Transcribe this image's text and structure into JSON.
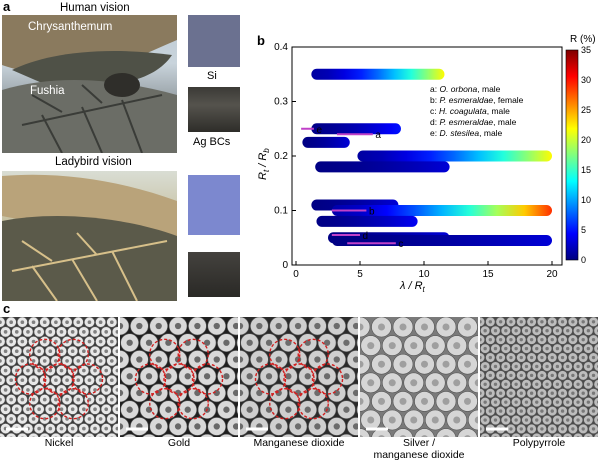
{
  "panel_a": {
    "label": "a",
    "human_title": "Human vision",
    "chrysanthemum": "Chrysanthemum",
    "fushia": "Fushia",
    "si": "Si",
    "ag": "Ag BCs",
    "ladybird_title": "Ladybird vision"
  },
  "panel_b": {
    "label": "b"
  },
  "panel_c": {
    "label": "c",
    "captions": [
      "Nickel",
      "Gold",
      "Manganese dioxide",
      "Silver /",
      "manganese dioxide",
      "Polypyrrole"
    ]
  },
  "chart_data": {
    "type": "bar",
    "xlabel_main": "λ / R",
    "xlabel_sub": "t",
    "ylabel_main": "R",
    "ylabel_t": "t",
    "ylabel_mid": " / R",
    "ylabel_b": "b",
    "xlim": [
      0,
      20
    ],
    "ylim": [
      0,
      0.4
    ],
    "xticks": [
      0,
      5,
      10,
      15,
      20
    ],
    "yticks": [
      0,
      0.1,
      0.2,
      0.3,
      0.4
    ],
    "colorbar": {
      "title": "R (%)",
      "min": 0,
      "max": 35,
      "ticks": [
        0,
        5,
        10,
        15,
        20,
        25,
        30,
        35
      ]
    },
    "legend": [
      {
        "letter": "a: ",
        "species": "O. orbona",
        "sex": ", male"
      },
      {
        "letter": "b: ",
        "species": "P. esmeraldae",
        "sex": ", female"
      },
      {
        "letter": "c: ",
        "species": "H. coagulata",
        "sex": ", male"
      },
      {
        "letter": "d: ",
        "species": "P. esmeraldae",
        "sex": ", male"
      },
      {
        "letter": "e: ",
        "species": "D. stesilea",
        "sex": ", male"
      }
    ],
    "series": [
      {
        "y": 0.35,
        "x0": 1.2,
        "x1": 11.6,
        "rmax": 22
      },
      {
        "y": 0.25,
        "x0": 1.2,
        "x1": 8.2,
        "rmax": 5
      },
      {
        "y": 0.225,
        "x0": 0.5,
        "x1": 4.2,
        "rmax": 3
      },
      {
        "y": 0.2,
        "x0": 4.8,
        "x1": 20.0,
        "rmax": 22
      },
      {
        "y": 0.18,
        "x0": 1.5,
        "x1": 12.0,
        "rmax": 3
      },
      {
        "y": 0.11,
        "x0": 1.2,
        "x1": 8.0,
        "rmax": 3
      },
      {
        "y": 0.1,
        "x0": 2.8,
        "x1": 20.0,
        "rmax": 29
      },
      {
        "y": 0.08,
        "x0": 1.6,
        "x1": 9.5,
        "rmax": 4
      },
      {
        "y": 0.05,
        "x0": 2.5,
        "x1": 12.0,
        "rmax": 3
      },
      {
        "y": 0.045,
        "x0": 2.8,
        "x1": 20.0,
        "rmax": 3
      }
    ],
    "markers": [
      {
        "label": "a",
        "y": 0.24,
        "x0": 3.2,
        "x1": 6.0,
        "lx": 6.2
      },
      {
        "label": "b",
        "y": 0.1,
        "x0": 2.8,
        "x1": 5.5,
        "lx": 5.7
      },
      {
        "label": "c",
        "y": 0.04,
        "x0": 4.0,
        "x1": 7.8,
        "lx": 8.0
      },
      {
        "label": "d",
        "y": 0.055,
        "x0": 2.8,
        "x1": 5.0,
        "lx": 5.2
      },
      {
        "label": "e",
        "y": 0.25,
        "x0": 0.4,
        "x1": 1.4,
        "lx": 1.6
      }
    ]
  }
}
